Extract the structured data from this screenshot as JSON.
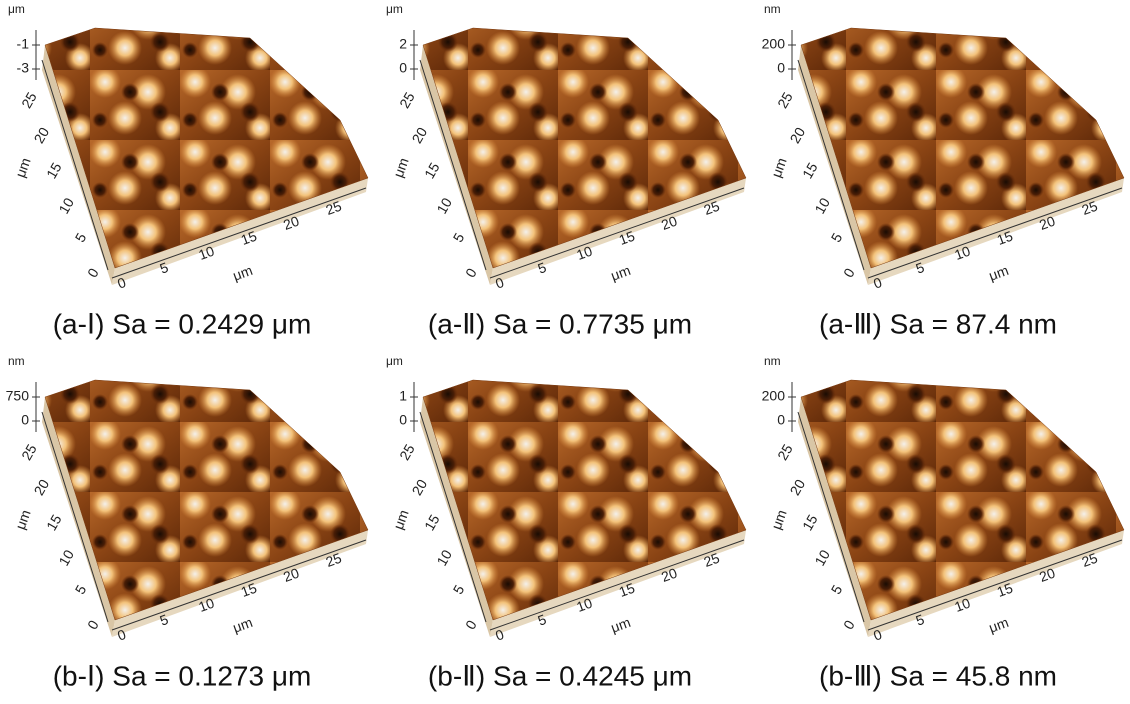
{
  "panels": [
    {
      "caption": "(a-Ⅰ) Sa = 0.2429 μm",
      "z_unit": "μm",
      "z_ticks": [
        "-1",
        "-3"
      ],
      "y_unit": "μm",
      "y_ticks": [
        "0",
        "5",
        "10",
        "15",
        "20",
        "25"
      ],
      "x_unit": "μm",
      "x_ticks": [
        "0",
        "5",
        "10",
        "15",
        "20",
        "25"
      ]
    },
    {
      "caption": "(a-Ⅱ) Sa = 0.7735 μm",
      "z_unit": "μm",
      "z_ticks": [
        "2",
        "0"
      ],
      "y_unit": "μm",
      "y_ticks": [
        "0",
        "5",
        "10",
        "15",
        "20",
        "25"
      ],
      "x_unit": "μm",
      "x_ticks": [
        "0",
        "5",
        "10",
        "15",
        "20",
        "25"
      ]
    },
    {
      "caption": "(a-Ⅲ) Sa = 87.4 nm",
      "z_unit": "nm",
      "z_ticks": [
        "200",
        "0"
      ],
      "y_unit": "μm",
      "y_ticks": [
        "0",
        "5",
        "10",
        "15",
        "20",
        "25"
      ],
      "x_unit": "μm",
      "x_ticks": [
        "0",
        "5",
        "10",
        "15",
        "20",
        "25"
      ]
    },
    {
      "caption": "(b-Ⅰ) Sa = 0.1273 μm",
      "z_unit": "nm",
      "z_ticks": [
        "750",
        "0"
      ],
      "y_unit": "μm",
      "y_ticks": [
        "0",
        "5",
        "10",
        "15",
        "20",
        "25"
      ],
      "x_unit": "μm",
      "x_ticks": [
        "0",
        "5",
        "10",
        "15",
        "20",
        "25"
      ]
    },
    {
      "caption": "(b-Ⅱ) Sa = 0.4245 μm",
      "z_unit": "μm",
      "z_ticks": [
        "1",
        "0"
      ],
      "y_unit": "μm",
      "y_ticks": [
        "0",
        "5",
        "10",
        "15",
        "20",
        "25"
      ],
      "x_unit": "μm",
      "x_ticks": [
        "0",
        "5",
        "10",
        "15",
        "20",
        "25"
      ]
    },
    {
      "caption": "(b-Ⅲ) Sa = 45.8 nm",
      "z_unit": "nm",
      "z_ticks": [
        "200",
        "0"
      ],
      "y_unit": "μm",
      "y_ticks": [
        "0",
        "5",
        "10",
        "15",
        "20",
        "25"
      ],
      "x_unit": "μm",
      "x_ticks": [
        "0",
        "5",
        "10",
        "15",
        "20",
        "25"
      ]
    }
  ]
}
